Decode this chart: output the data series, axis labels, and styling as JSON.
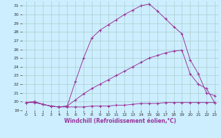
{
  "xlabel": "Windchill (Refroidissement éolien,°C)",
  "bg_color": "#cceeff",
  "line_color": "#993399",
  "grid_color": "#aacccc",
  "xlim": [
    -0.5,
    23.5
  ],
  "ylim": [
    19,
    31.5
  ],
  "xticks": [
    0,
    1,
    2,
    3,
    4,
    5,
    6,
    7,
    8,
    9,
    10,
    11,
    12,
    13,
    14,
    15,
    16,
    17,
    18,
    19,
    20,
    21,
    22,
    23
  ],
  "yticks": [
    19,
    20,
    21,
    22,
    23,
    24,
    25,
    26,
    27,
    28,
    29,
    30,
    31
  ],
  "line1_x": [
    0,
    1,
    2,
    3,
    4,
    5,
    6,
    7,
    8,
    9,
    10,
    11,
    12,
    13,
    14,
    15,
    16,
    17,
    18,
    19,
    20,
    21,
    22,
    23
  ],
  "line1_y": [
    19.9,
    19.9,
    19.7,
    19.5,
    19.4,
    19.4,
    19.4,
    19.4,
    19.5,
    19.5,
    19.5,
    19.6,
    19.6,
    19.7,
    19.8,
    19.8,
    19.8,
    19.9,
    19.9,
    19.9,
    19.9,
    19.9,
    19.9,
    19.9
  ],
  "line2_x": [
    0,
    1,
    2,
    3,
    4,
    5,
    6,
    7,
    8,
    9,
    10,
    11,
    12,
    13,
    14,
    15,
    16,
    17,
    18,
    19,
    20,
    21,
    22,
    23
  ],
  "line2_y": [
    19.9,
    20.0,
    19.7,
    19.5,
    19.4,
    19.5,
    20.2,
    20.9,
    21.5,
    22.0,
    22.5,
    23.0,
    23.5,
    24.0,
    24.5,
    25.0,
    25.3,
    25.6,
    25.8,
    25.9,
    23.2,
    22.0,
    21.5,
    19.9
  ],
  "line3_x": [
    0,
    1,
    2,
    3,
    4,
    5,
    6,
    7,
    8,
    9,
    10,
    11,
    12,
    13,
    14,
    15,
    16,
    17,
    18,
    19,
    20,
    21,
    22,
    23
  ],
  "line3_y": [
    19.9,
    20.0,
    19.7,
    19.5,
    19.4,
    19.5,
    22.3,
    25.0,
    27.3,
    28.2,
    28.8,
    29.4,
    30.0,
    30.5,
    31.0,
    31.2,
    30.4,
    29.5,
    28.6,
    27.8,
    24.8,
    23.2,
    21.0,
    20.7
  ],
  "marker": "+",
  "markersize": 2.5,
  "linewidth": 0.7
}
